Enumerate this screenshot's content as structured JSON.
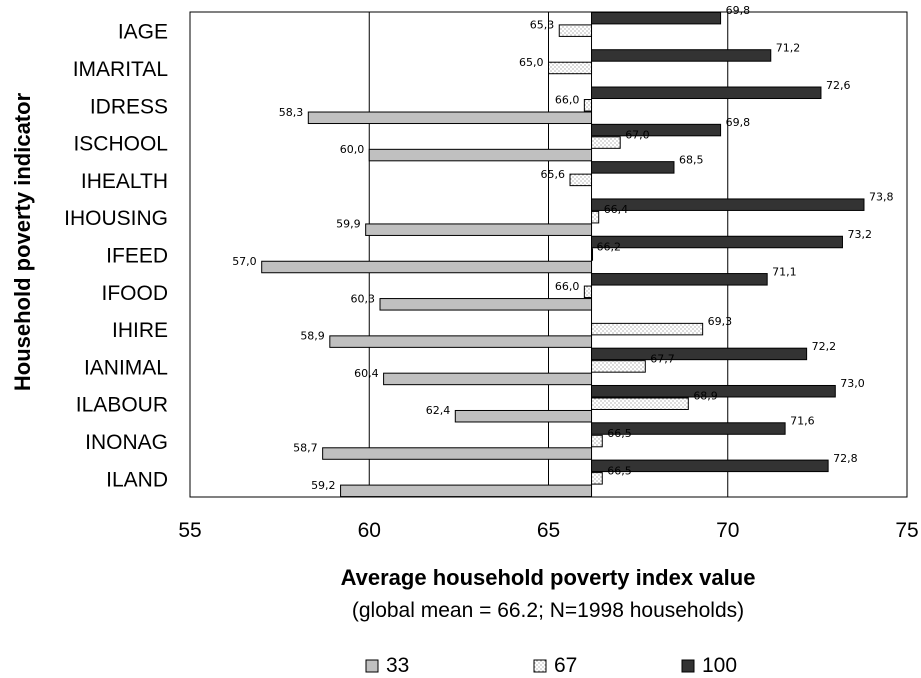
{
  "chart_data": {
    "type": "bar",
    "orientation": "horizontal",
    "xlabel": "Average household poverty index value",
    "subtitle": "(global mean = 66.2; N=1998 households)",
    "ylabel": "Household poverty indicator",
    "xlim": [
      55,
      75
    ],
    "xticks": [
      55,
      60,
      65,
      70,
      75
    ],
    "baseline": 66.2,
    "grid": "vertical",
    "legend_position": "bottom",
    "categories": [
      "IAGE",
      "IMARITAL",
      "IDRESS",
      "ISCHOOL",
      "IHEALTH",
      "IHOUSING",
      "IFEED",
      "IFOOD",
      "IHIRE",
      "IANIMAL",
      "ILABOUR",
      "INONAG",
      "ILAND"
    ],
    "series": [
      {
        "name": "33",
        "color": "#c0c0c0",
        "pattern": "solid-gray",
        "values": [
          null,
          null,
          58.3,
          60.0,
          null,
          59.9,
          57.0,
          60.3,
          58.9,
          60.4,
          62.4,
          58.7,
          59.2
        ],
        "labels": [
          "",
          "",
          "58,3",
          "60,0",
          "",
          "59,9",
          "57,0",
          "60,3",
          "58,9",
          "60,4",
          "62,4",
          "58,7",
          "59,2"
        ]
      },
      {
        "name": "67",
        "color": "#ffffff",
        "pattern": "dotted",
        "values": [
          65.3,
          65.0,
          66.0,
          67.0,
          65.6,
          66.4,
          66.2,
          66.0,
          69.3,
          67.7,
          68.9,
          66.5,
          66.5
        ],
        "labels": [
          "65,3",
          "65,0",
          "66,0",
          "67,0",
          "65,6",
          "66,4",
          "66,2",
          "66,0",
          "69,3",
          "67,7",
          "68,9",
          "66,5",
          "66,5"
        ]
      },
      {
        "name": "100",
        "color": "#333333",
        "pattern": "solid-dark",
        "values": [
          69.8,
          71.2,
          72.6,
          69.8,
          68.5,
          73.8,
          73.2,
          71.1,
          null,
          72.2,
          73.0,
          71.6,
          72.8
        ],
        "labels": [
          "69,8",
          "71,2",
          "72,6",
          "69,8",
          "68,5",
          "73,8",
          "73,2",
          "71,1",
          "",
          "72,2",
          "73,0",
          "71,6",
          "72,8"
        ]
      }
    ]
  }
}
